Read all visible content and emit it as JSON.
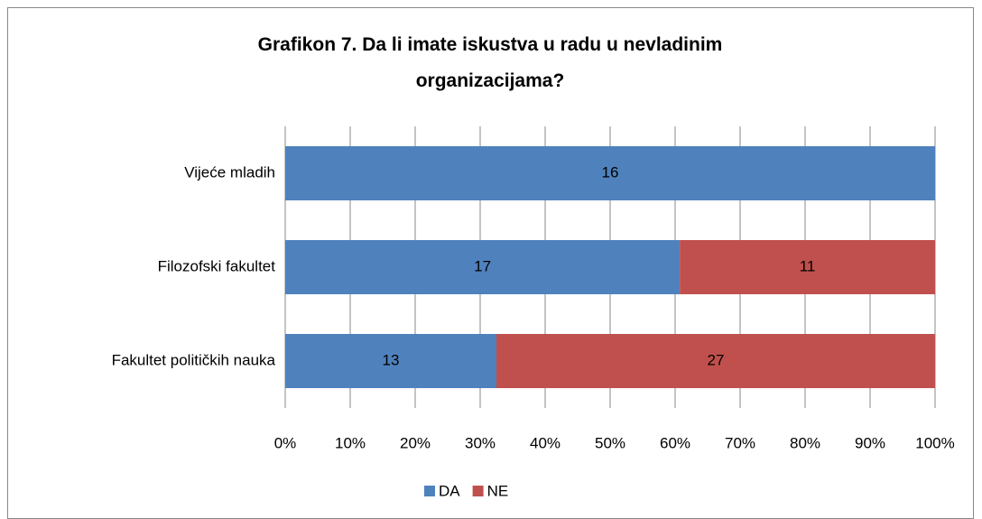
{
  "chart_data": {
    "type": "bar",
    "orientation": "horizontal",
    "stacking": "percent",
    "title": "Grafikon 7. Da li imate iskustva u radu u nevladinim organizacijama?",
    "categories": [
      "Vijeće mladih",
      "Filozofski fakultet",
      "Fakultet političkih nauka"
    ],
    "series": [
      {
        "name": "DA",
        "color": "#4f81bd",
        "values": [
          16,
          17,
          13
        ]
      },
      {
        "name": "NE",
        "color": "#c0504d",
        "values": [
          0,
          11,
          27
        ]
      }
    ],
    "xlim": [
      0,
      100
    ],
    "xticks": [
      {
        "value": 0,
        "label": "0%"
      },
      {
        "value": 10,
        "label": "10%"
      },
      {
        "value": 20,
        "label": "20%"
      },
      {
        "value": 30,
        "label": "30%"
      },
      {
        "value": 40,
        "label": "40%"
      },
      {
        "value": 50,
        "label": "50%"
      },
      {
        "value": 60,
        "label": "60%"
      },
      {
        "value": 70,
        "label": "70%"
      },
      {
        "value": 80,
        "label": "80%"
      },
      {
        "value": 90,
        "label": "90%"
      },
      {
        "value": 100,
        "label": "100%"
      }
    ],
    "grid": true,
    "legend": "bottom"
  }
}
